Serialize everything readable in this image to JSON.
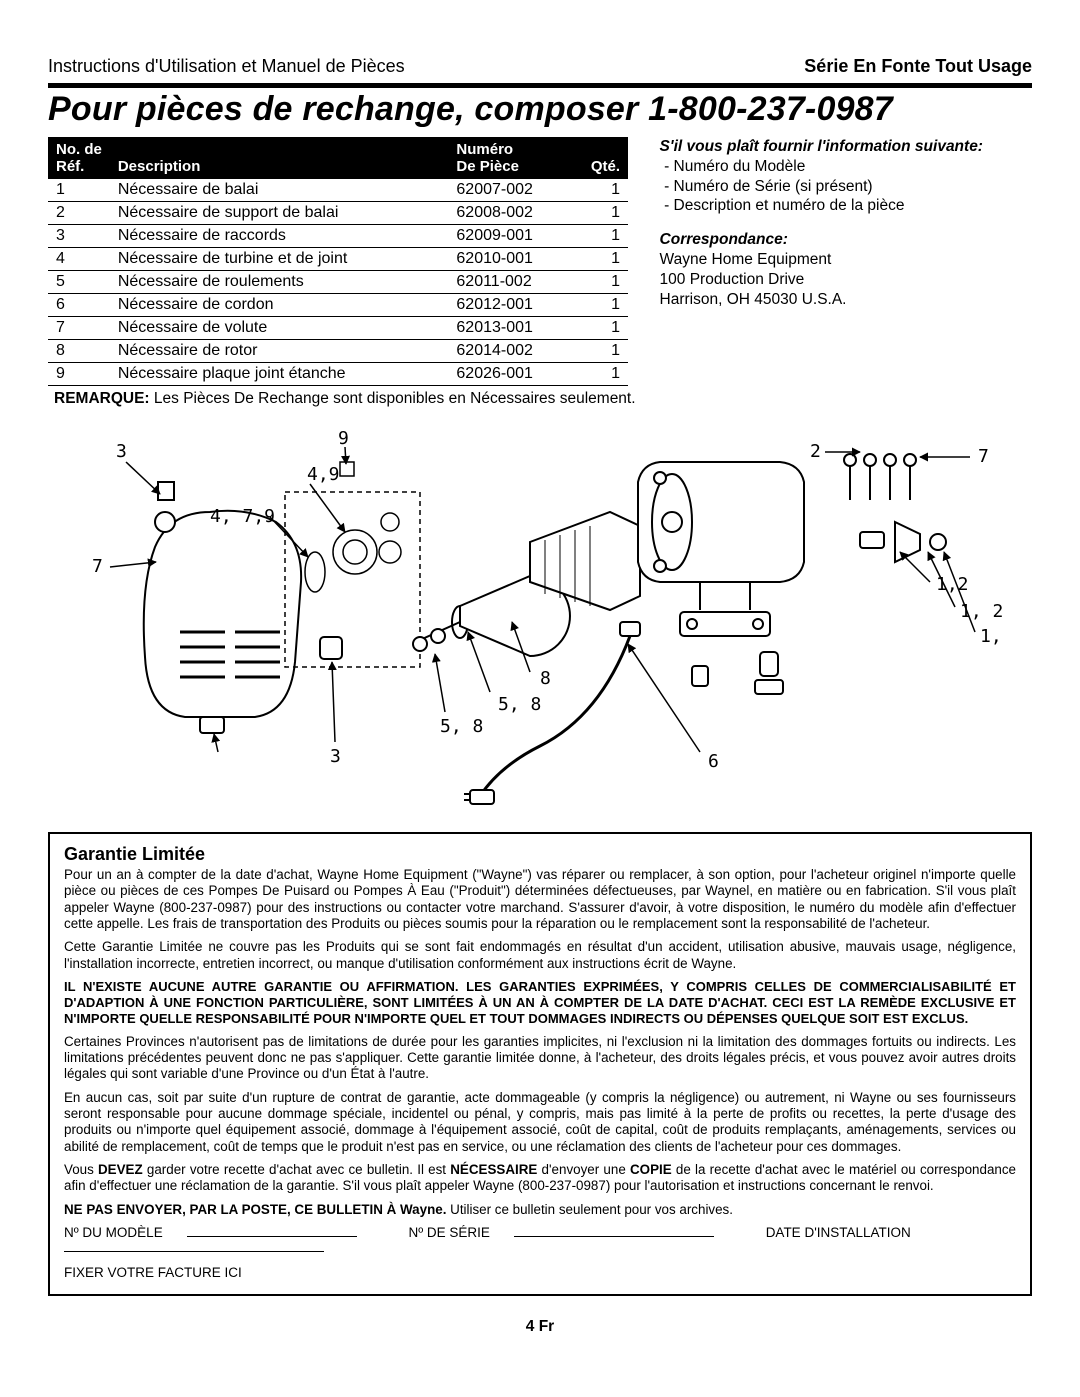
{
  "header": {
    "left": "Instructions d'Utilisation et Manuel de Pièces",
    "right": "Série En Fonte Tout Usage"
  },
  "headline_text": "Pour pièces de rechange, composer 1-800-237-0987",
  "table": {
    "headers": {
      "ref1": "No. de",
      "ref2": "Réf.",
      "desc": "Description",
      "num1": "Numéro",
      "num2": "De Pièce",
      "qty": "Qté."
    },
    "rows": [
      {
        "ref": "1",
        "desc": "Nécessaire de balai",
        "num": "62007-002",
        "qty": "1"
      },
      {
        "ref": "2",
        "desc": "Nécessaire de support de balai",
        "num": "62008-002",
        "qty": "1"
      },
      {
        "ref": "3",
        "desc": "Nécessaire de raccords",
        "num": "62009-001",
        "qty": "1"
      },
      {
        "ref": "4",
        "desc": "Nécessaire de turbine et de joint",
        "num": "62010-001",
        "qty": "1"
      },
      {
        "ref": "5",
        "desc": "Nécessaire de roulements",
        "num": "62011-002",
        "qty": "1"
      },
      {
        "ref": "6",
        "desc": "Nécessaire de cordon",
        "num": "62012-001",
        "qty": "1"
      },
      {
        "ref": "7",
        "desc": "Nécessaire de volute",
        "num": "62013-001",
        "qty": "1"
      },
      {
        "ref": "8",
        "desc": "Nécessaire de rotor",
        "num": "62014-002",
        "qty": "1"
      },
      {
        "ref": "9",
        "desc": "Nécessaire plaque joint étanche",
        "num": "62026-001",
        "qty": "1"
      }
    ]
  },
  "remark": {
    "label": "REMARQUE:",
    "text": "Les Pièces De Rechange sont disponibles en Nécessaires seulement."
  },
  "info": {
    "intro": "S'il vous plaît fournir l'information suivante:",
    "items": [
      "Numéro du Modèle",
      "Numéro de Série (si présent)",
      "Description et numéro de la pièce"
    ],
    "corr_label": "Correspondance:",
    "addr1": "Wayne Home Equipment",
    "addr2": "100 Production Drive",
    "addr3": "Harrison, OH   45030  U.S.A."
  },
  "diagram": {
    "labels": [
      "3",
      "9",
      "4,9",
      "4, 7,9",
      "7",
      "3",
      "5, 8",
      "5, 8",
      "8",
      "6",
      "2",
      "7",
      "1,2",
      "1, 2",
      "1,"
    ]
  },
  "warranty": {
    "title": "Garantie Limitée",
    "p1": "Pour un an à compter de la date d'achat, Wayne Home Equipment (\"Wayne\") vas réparer ou remplacer, à son option, pour l'acheteur originel n'importe quelle pièce ou pièces de ces Pompes De Puisard ou Pompes À Eau (\"Produit\") déterminées défectueuses, par Waynel, en matière ou en fabrication. S'il vous plaît appeler Wayne (800-237-0987) pour des instructions ou contacter votre marchand. S'assurer d'avoir, à votre disposition, le numéro du modèle afin d'effectuer cette appelle. Les frais de transportation des Produits ou pièces soumis pour la réparation ou le remplacement sont la responsabilité de l'acheteur.",
    "p2": "Cette Garantie Limitée ne couvre pas les Produits qui se sont fait endommagés en résultat d'un accident, utilisation abusive, mauvais usage, négligence, l'installation incorrecte, entretien incorrect, ou manque d'utilisation conformément aux instructions écrit de Wayne.",
    "p3": "IL N'EXISTE AUCUNE AUTRE GARANTIE OU AFFIRMATION. LES GARANTIES EXPRIMÉES, Y COMPRIS CELLES DE COMMERCIALISABILITÉ ET D'ADAPTION À UNE FONCTION PARTICULIÈRE, SONT LIMITÉES À UN AN À COMPTER DE LA DATE D'ACHAT. CECI EST LA REMÈDE EXCLUSIVE ET N'IMPORTE QUELLE RESPONSABILITÉ POUR N'IMPORTE QUEL ET TOUT DOMMAGES INDIRECTS OU DÉPENSES QUELQUE SOIT EST EXCLUS.",
    "p4": "Certaines Provinces n'autorisent pas de limitations de durée pour les garanties implicites, ni l'exclusion ni la limitation des dommages fortuits ou indirects. Les limitations précédentes peuvent donc ne pas s'appliquer. Cette garantie limitée donne, à l'acheteur, des droits légales précis, et vous pouvez avoir autres droits légales qui sont variable d'une Province ou d'un État à l'autre.",
    "p5": "En aucun cas, soit par suite d'un rupture de contrat de garantie, acte dommageable (y compris la négligence) ou autrement, ni Wayne ou ses fournisseurs seront responsable pour aucune dommage spéciale, incidentel ou pénal, y compris, mais pas limité à la perte de profits ou recettes, la perte d'usage des produits ou n'importe quel équipement associé, dommage à l'équipement associé, coût de capital, coût de produits remplaçants, aménagements, services ou abilité de remplacement, coût de temps que le produit n'est pas en service, ou une réclamation des clients de l'acheteur pour ces dommages.",
    "p6a": "Vous ",
    "p6b": "DEVEZ",
    "p6c": " garder votre recette d'achat avec ce bulletin. Il est ",
    "p6d": "NÉCESSAIRE",
    "p6e": " d'envoyer une ",
    "p6f": "COPIE",
    "p6g": " de la recette d'achat avec le matériel ou correspondance afin d'effectuer une réclamation de la garantie. S'il vous plaît appeler Wayne (800-237-0987) pour l'autorisation et instructions concernant le renvoi.",
    "p7a": "NE PAS ENVOYER, PAR LA POSTE, CE BULLETIN À Wayne.",
    "p7b": " Utiliser ce bulletin seulement pour vos archives.",
    "fields": {
      "model": "Nº DU MODÈLE",
      "serial": "Nº DE SÉRIE",
      "date": "DATE D'INSTALLATION",
      "attach": "FIXER VOTRE FACTURE ICI"
    }
  },
  "pagenum": "4 Fr",
  "colors": {
    "fg": "#000000",
    "bg": "#ffffff"
  }
}
